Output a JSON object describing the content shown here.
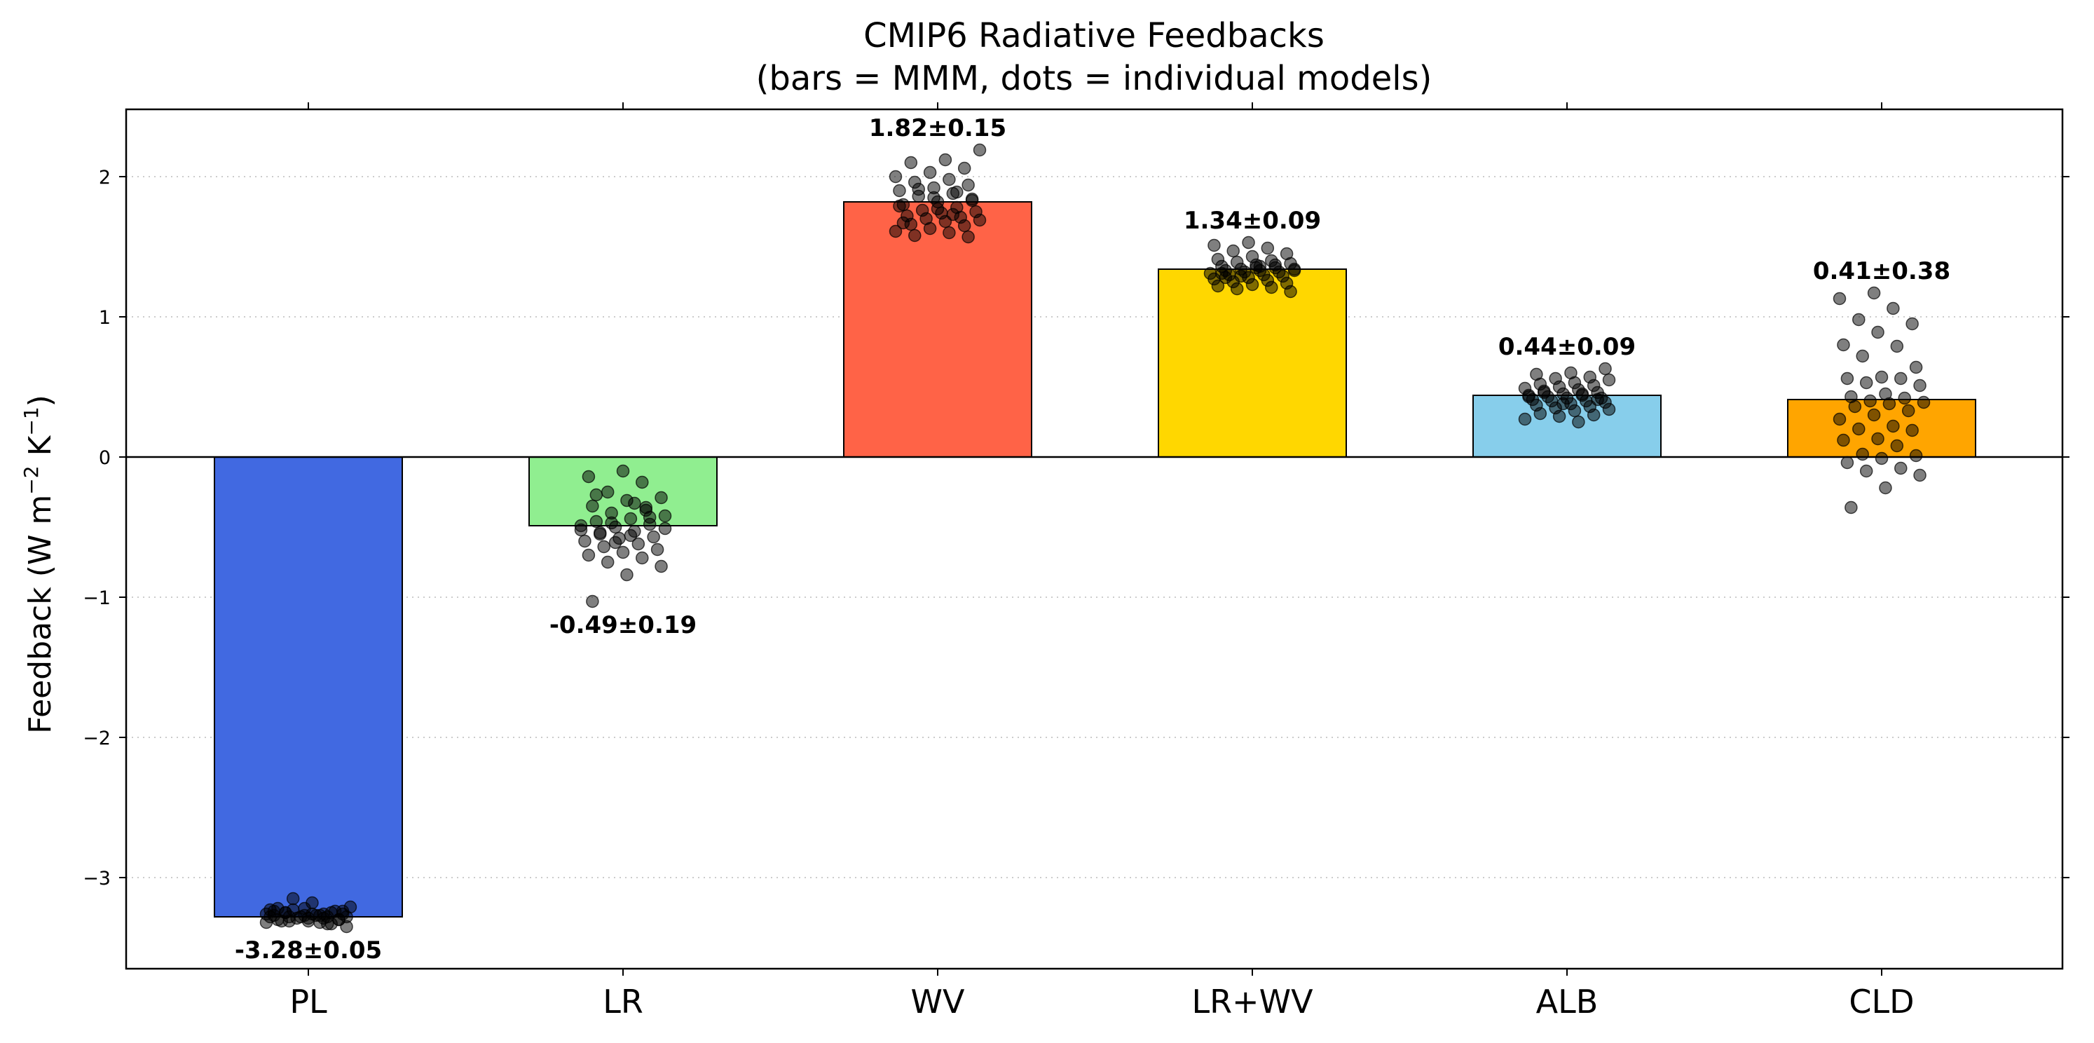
{
  "chart_data": {
    "type": "bar",
    "title_line1": "CMIP6 Radiative Feedbacks",
    "title_line2": "(bars = MMM, dots = individual models)",
    "ylabel": "Feedback (W m",
    "ylabel_sup1": "−2",
    "ylabel_mid": " K",
    "ylabel_sup2": "−1",
    "ylabel_end": ")",
    "ylim": [
      -3.65,
      2.48
    ],
    "yticks": [
      2,
      1,
      0,
      -1,
      -2,
      -3
    ],
    "ytick_labels": [
      "2",
      "1",
      "0",
      "−1",
      "−2",
      "−3"
    ],
    "grid": "horizontal dotted",
    "categories": [
      "PL",
      "LR",
      "WV",
      "LR+WV",
      "ALB",
      "CLD"
    ],
    "values": [
      -3.28,
      -0.49,
      1.82,
      1.34,
      0.44,
      0.41
    ],
    "errors": [
      0.05,
      0.19,
      0.15,
      0.09,
      0.09,
      0.38
    ],
    "labels": [
      "-3.28±0.05",
      "-0.49±0.19",
      "1.82±0.15",
      "1.34±0.09",
      "0.44±0.09",
      "0.41±0.38"
    ],
    "colors": [
      "#4169E1",
      "#90EE90",
      "#FF6347",
      "#FFD700",
      "#87CEEB",
      "#FFA500"
    ],
    "models": [
      [
        -3.32,
        -3.27,
        -3.25,
        -3.3,
        -3.22,
        -3.28,
        -3.26,
        -3.31,
        -3.24,
        -3.29,
        -3.27,
        -3.33,
        -3.23,
        -3.28,
        -3.26,
        -3.3,
        -3.25,
        -3.29,
        -3.21,
        -3.27,
        -3.31,
        -3.24,
        -3.28,
        -3.26,
        -3.32,
        -3.25,
        -3.3,
        -3.27,
        -3.23,
        -3.29,
        -3.28,
        -3.26,
        -3.31,
        -3.24,
        -3.28,
        -3.15,
        -3.35,
        -3.18,
        -3.22,
        -3.33
      ],
      [
        -0.1,
        -0.14,
        -0.18,
        -0.25,
        -0.29,
        -0.31,
        -0.35,
        -0.38,
        -0.4,
        -0.42,
        -0.44,
        -0.46,
        -0.48,
        -0.5,
        -0.52,
        -0.53,
        -0.55,
        -0.57,
        -0.58,
        -0.6,
        -0.62,
        -0.64,
        -0.66,
        -0.68,
        -0.7,
        -0.72,
        -0.75,
        -0.78,
        -0.84,
        -1.03,
        -0.36,
        -0.47,
        -0.51,
        -0.56,
        -0.27,
        -0.43,
        -0.61,
        -0.49,
        -0.33,
        -0.54
      ],
      [
        2.19,
        2.12,
        2.1,
        2.06,
        2.03,
        2.0,
        1.98,
        1.96,
        1.94,
        1.92,
        1.9,
        1.88,
        1.86,
        1.84,
        1.82,
        1.8,
        1.78,
        1.76,
        1.75,
        1.74,
        1.72,
        1.71,
        1.7,
        1.69,
        1.68,
        1.66,
        1.65,
        1.63,
        1.61,
        1.6,
        1.58,
        1.57,
        1.85,
        1.79,
        1.73,
        1.91,
        1.83,
        1.77,
        1.67,
        1.89
      ],
      [
        1.53,
        1.51,
        1.49,
        1.47,
        1.45,
        1.43,
        1.41,
        1.4,
        1.39,
        1.38,
        1.37,
        1.36,
        1.35,
        1.34,
        1.34,
        1.33,
        1.33,
        1.32,
        1.32,
        1.31,
        1.3,
        1.3,
        1.29,
        1.28,
        1.27,
        1.26,
        1.25,
        1.24,
        1.23,
        1.22,
        1.21,
        1.2,
        1.18,
        1.35,
        1.31,
        1.37,
        1.29,
        1.33,
        1.36,
        1.28
      ],
      [
        0.63,
        0.6,
        0.59,
        0.57,
        0.56,
        0.55,
        0.53,
        0.52,
        0.51,
        0.5,
        0.49,
        0.48,
        0.47,
        0.46,
        0.45,
        0.44,
        0.44,
        0.43,
        0.42,
        0.42,
        0.41,
        0.4,
        0.4,
        0.39,
        0.38,
        0.37,
        0.36,
        0.35,
        0.34,
        0.33,
        0.31,
        0.3,
        0.29,
        0.27,
        0.25,
        0.46,
        0.41,
        0.38,
        0.43,
        0.45
      ],
      [
        1.17,
        1.13,
        1.06,
        0.98,
        0.95,
        0.89,
        0.8,
        0.79,
        0.72,
        0.64,
        0.57,
        0.56,
        0.56,
        0.53,
        0.51,
        0.45,
        0.43,
        0.42,
        0.4,
        0.39,
        0.38,
        0.36,
        0.33,
        0.3,
        0.27,
        0.22,
        0.2,
        0.19,
        0.13,
        0.12,
        0.08,
        0.02,
        0.01,
        -0.01,
        -0.04,
        -0.08,
        -0.1,
        -0.13,
        -0.22,
        -0.36
      ]
    ]
  }
}
